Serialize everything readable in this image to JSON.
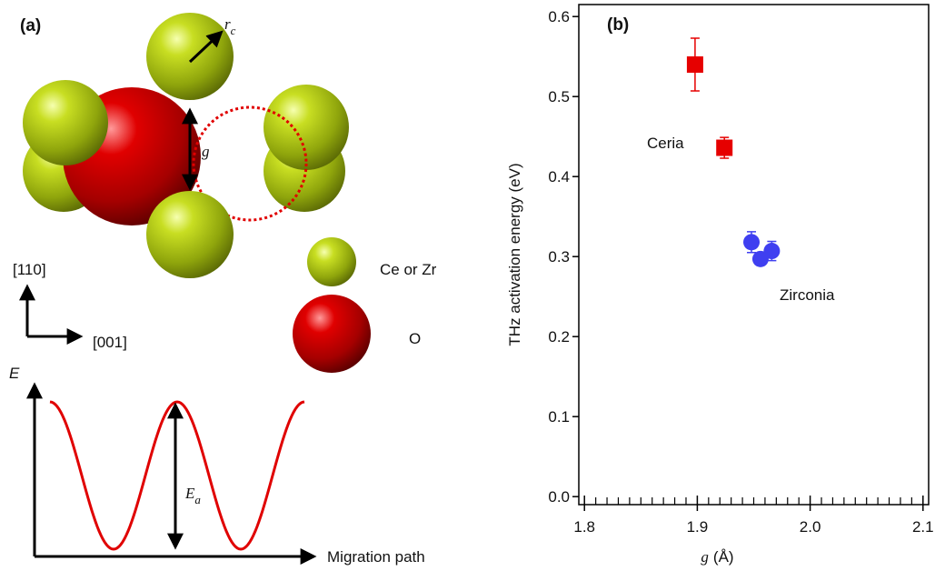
{
  "panel_a": {
    "label": "(a)",
    "rc": {
      "symbol": "r",
      "sub": "c"
    },
    "gap": "g",
    "axis_110": "[110]",
    "axis_001": "[001]",
    "legend": [
      "Ce or Zr",
      "O"
    ],
    "energy_axis": "E",
    "activation": {
      "symbol": "E",
      "sub": "a"
    },
    "path_axis": "Migration path"
  },
  "chart_data": {
    "type": "scatter",
    "panel_label": "(b)",
    "xlabel": {
      "symbol": "g",
      "unit": "(Å)"
    },
    "ylabel": "THz activation energy (eV)",
    "xlim": [
      1.795,
      2.105
    ],
    "ylim": [
      -0.01,
      0.615
    ],
    "xticks": [
      1.8,
      1.9,
      {
        "value": 2.0,
        "label": "2.0"
      },
      2.1
    ],
    "xminorticks": [
      1.81,
      1.82,
      1.83,
      1.84,
      1.85,
      1.86,
      1.87,
      1.88,
      1.89,
      1.91,
      1.92,
      1.93,
      1.94,
      1.95,
      1.96,
      1.97,
      1.98,
      1.99,
      2.01,
      2.02,
      2.03,
      2.04,
      2.05,
      2.06,
      2.07,
      2.08,
      2.09
    ],
    "yticks": [
      {
        "value": 0,
        "label": "0.0"
      },
      0.1,
      0.2,
      0.3,
      0.4,
      0.5,
      0.6
    ],
    "series": [
      {
        "name": "Ceria",
        "color": "#e60000",
        "marker": "square",
        "x": [
          1.898,
          1.924
        ],
        "values": [
          0.54,
          0.436
        ],
        "errors": [
          0.033,
          0.013
        ]
      },
      {
        "name": "Zirconia",
        "color": "#3f3ff0",
        "marker": "circle",
        "x": [
          1.948,
          1.956,
          1.966
        ],
        "values": [
          0.318,
          0.297,
          0.307
        ],
        "errors": [
          0.013,
          0.005,
          0.012
        ]
      }
    ]
  }
}
